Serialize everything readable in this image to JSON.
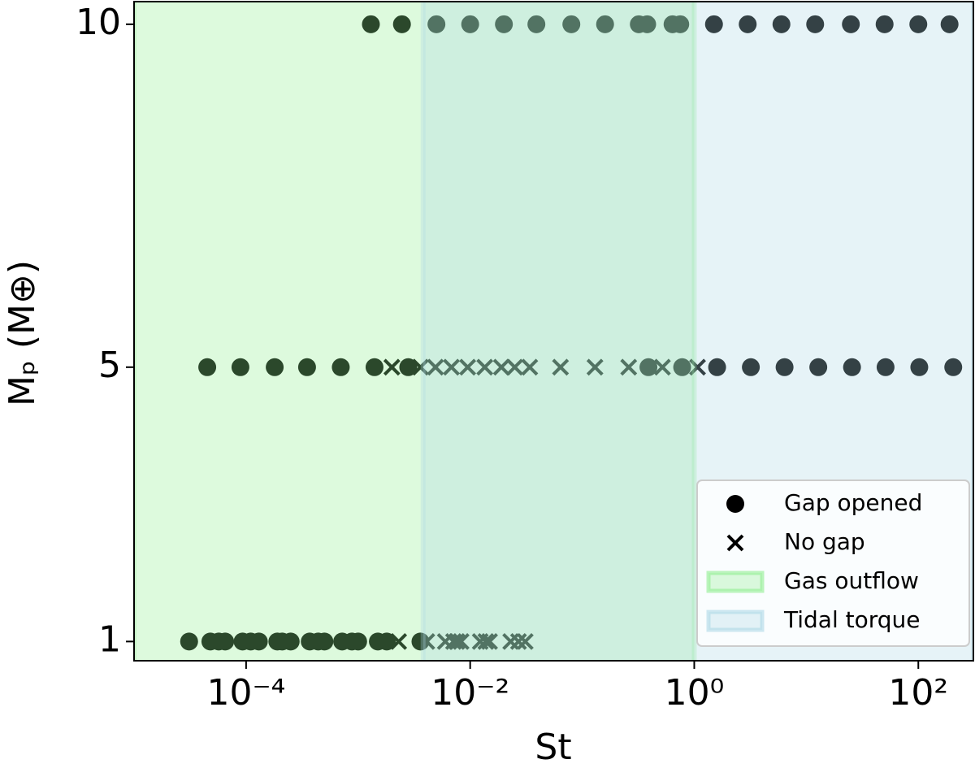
{
  "chart_data": {
    "type": "scatter",
    "xlabel": "St",
    "ylabel": "Mₚ (M⊕)",
    "xscale": "log",
    "xlim": [
      1e-05,
      310
    ],
    "ylim": [
      0.72,
      10.33
    ],
    "xticks": [
      {
        "value": 0.0001,
        "label": "10⁻⁴"
      },
      {
        "value": 0.01,
        "label": "10⁻²"
      },
      {
        "value": 1,
        "label": "10⁰"
      },
      {
        "value": 100,
        "label": "10²"
      }
    ],
    "yticks": [
      1,
      5,
      10
    ],
    "legend": "lower right",
    "span_alpha": 0.3,
    "series": [
      {
        "name": "Gap opened",
        "marker": "o",
        "color": "#000000",
        "x": [
          0.0013,
          0.00246,
          0.005,
          0.01,
          0.02,
          0.039,
          0.08,
          0.16,
          0.32,
          0.38,
          0.64,
          0.75,
          1.5,
          3,
          6,
          12,
          25,
          50,
          100,
          190,
          4.5e-05,
          8.9e-05,
          0.00018,
          0.00035,
          0.0007,
          0.0014,
          0.0028,
          0.39,
          0.78,
          1.6,
          3.2,
          6.4,
          12.8,
          25.6,
          51,
          102,
          205,
          3.1e-05,
          4.8e-05,
          5.7e-05,
          6.5e-05,
          9.3e-05,
          0.00011,
          0.00013,
          0.00019,
          0.00021,
          0.00025,
          0.00037,
          0.00044,
          0.0005,
          0.00072,
          0.00088,
          0.001,
          0.0015,
          0.0018,
          0.0036
        ],
        "values": [
          10,
          10,
          10,
          10,
          10,
          10,
          10,
          10,
          10,
          10,
          10,
          10,
          10,
          10,
          10,
          10,
          10,
          10,
          10,
          10,
          5,
          5,
          5,
          5,
          5,
          5,
          5,
          5,
          5,
          5,
          5,
          5,
          5,
          5,
          5,
          5,
          5,
          1,
          1,
          1,
          1,
          1,
          1,
          1,
          1,
          1,
          1,
          1,
          1,
          1,
          1,
          1,
          1,
          1,
          1,
          1
        ]
      },
      {
        "name": "No gap",
        "marker": "x",
        "color": "#000000",
        "x": [
          0.002,
          0.0036,
          0.0049,
          0.0068,
          0.0095,
          0.0135,
          0.019,
          0.025,
          0.034,
          0.064,
          0.13,
          0.26,
          0.52,
          1.07,
          0.0023,
          0.0041,
          0.006,
          0.0071,
          0.0076,
          0.0083,
          0.0123,
          0.0138,
          0.0149,
          0.023,
          0.027,
          0.031
        ],
        "values": [
          5,
          5,
          5,
          5,
          5,
          5,
          5,
          5,
          5,
          5,
          5,
          5,
          5,
          5,
          1,
          1,
          1,
          1,
          1,
          1,
          1,
          1,
          1,
          1,
          1,
          1
        ]
      }
    ],
    "spans": [
      {
        "name": "Gas outflow",
        "color": "#90ee90",
        "xmin": 1e-05,
        "xmax": 1
      },
      {
        "name": "Tidal torque",
        "color": "#add8e6",
        "xmin": 0.0038,
        "xmax": 310
      }
    ]
  }
}
